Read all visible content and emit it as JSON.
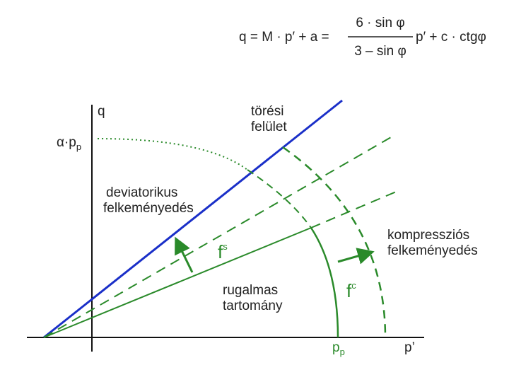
{
  "formula": {
    "lhs": "q = M · p′ + a =",
    "numerator": "6 · sin φ",
    "denominator": "3 – sin φ",
    "rhs": "p′ + c · ctgφ"
  },
  "axes": {
    "q": "q",
    "p": "p’"
  },
  "labels": {
    "alpha_pp": {
      "main": "α·p",
      "sub": "p"
    },
    "failure_surface": [
      "törési",
      "felület"
    ],
    "deviatoric_hardening": [
      "deviatorikus",
      "felkeményedés"
    ],
    "fs": {
      "main": "f",
      "sup": "s"
    },
    "compression_hardening": [
      "kompressziós",
      "felkeményedés"
    ],
    "elastic_region": [
      "rugalmas",
      "tartomány"
    ],
    "fc": {
      "main": "f",
      "sup": "c"
    },
    "pp": {
      "main": "p",
      "sub": "p"
    }
  }
}
